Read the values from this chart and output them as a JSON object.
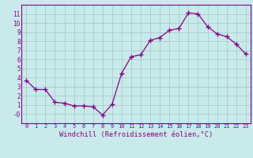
{
  "hours": [
    0,
    1,
    2,
    3,
    4,
    5,
    6,
    7,
    8,
    9,
    10,
    11,
    12,
    13,
    14,
    15,
    16,
    17,
    18,
    19,
    20,
    21,
    22,
    23
  ],
  "values": [
    3.7,
    2.7,
    2.7,
    1.3,
    1.2,
    0.9,
    0.9,
    0.8,
    -0.1,
    1.1,
    4.5,
    6.3,
    6.5,
    8.1,
    8.4,
    9.2,
    9.4,
    11.1,
    11.0,
    9.6,
    8.8,
    8.5,
    7.7,
    6.6
  ],
  "line_color": "#8b008b",
  "marker": "+",
  "bg_color": "#c8eaea",
  "grid_color": "#a8cccc",
  "xlabel": "Windchill (Refroidissement éolien,°C)",
  "ylim": [
    -1,
    12
  ],
  "xlim": [
    -0.5,
    23.5
  ],
  "yticks": [
    0,
    1,
    2,
    3,
    4,
    5,
    6,
    7,
    8,
    9,
    10,
    11
  ],
  "ytick_labels": [
    "-0",
    "1",
    "2",
    "3",
    "4",
    "5",
    "6",
    "7",
    "8",
    "9",
    "10",
    "11"
  ],
  "xlabel_color": "#8b008b",
  "tick_color": "#8b008b",
  "spine_color": "#8b008b",
  "font_family": "monospace",
  "xtick_fontsize": 5.0,
  "ytick_fontsize": 5.5,
  "xlabel_fontsize": 6.2
}
